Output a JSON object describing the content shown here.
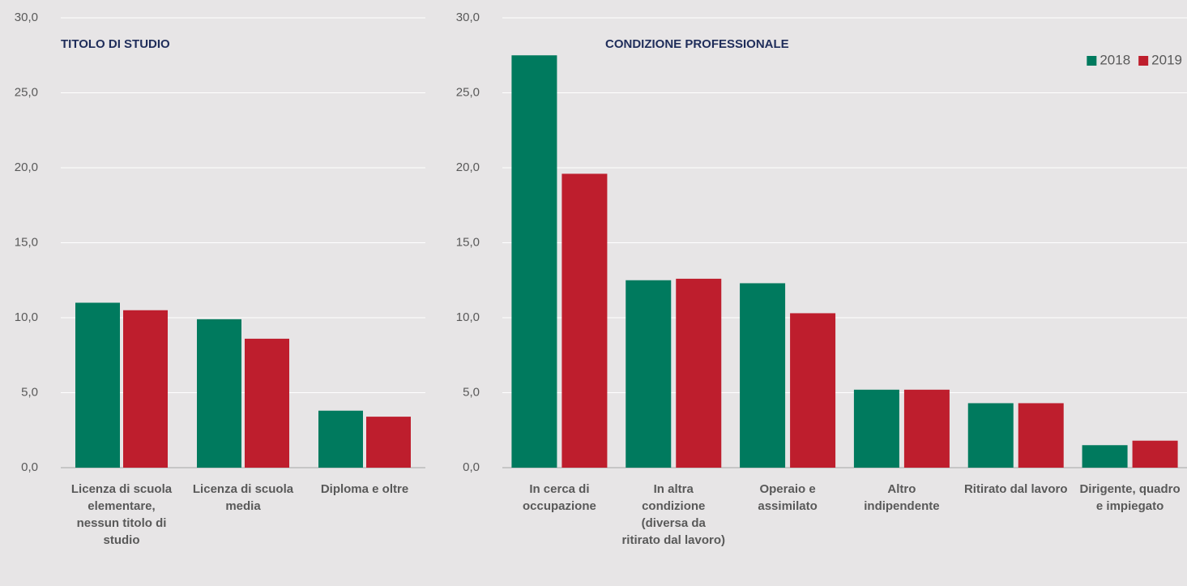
{
  "chart_data": [
    {
      "type": "bar",
      "title": "TITOLO DI STUDIO",
      "categories": [
        "Licenza di scuola elementare, nessun titolo di studio",
        "Licenza di scuola media",
        "Diploma e oltre"
      ],
      "series": [
        {
          "name": "2018",
          "color": "#007a5e",
          "values": [
            11.0,
            9.9,
            3.8
          ]
        },
        {
          "name": "2019",
          "color": "#be1e2d",
          "values": [
            10.5,
            8.6,
            3.4
          ]
        }
      ],
      "ylim": [
        0,
        30
      ],
      "yticks": [
        {
          "value": 0,
          "label": "0,0"
        },
        {
          "value": 5,
          "label": "5,0"
        },
        {
          "value": 10,
          "label": "10,0"
        },
        {
          "value": 15,
          "label": "15,0"
        },
        {
          "value": 20,
          "label": "20,0"
        },
        {
          "value": 25,
          "label": "25,0"
        },
        {
          "value": 30,
          "label": "30,0"
        }
      ],
      "grid": true,
      "legend": false
    },
    {
      "type": "bar",
      "title": "CONDIZIONE PROFESSIONALE",
      "categories": [
        "In cerca di occupazione",
        "In altra condizione (diversa da ritirato dal lavoro)",
        "Operaio e assimilato",
        "Altro indipendente",
        "Ritirato dal lavoro",
        "Dirigente, quadro e impiegato"
      ],
      "series": [
        {
          "name": "2018",
          "color": "#007a5e",
          "values": [
            27.5,
            12.5,
            12.3,
            5.2,
            4.3,
            1.5
          ]
        },
        {
          "name": "2019",
          "color": "#be1e2d",
          "values": [
            19.6,
            12.6,
            10.3,
            5.2,
            4.3,
            1.8
          ]
        }
      ],
      "ylim": [
        0,
        30
      ],
      "yticks": [
        {
          "value": 0,
          "label": "0,0"
        },
        {
          "value": 5,
          "label": "5,0"
        },
        {
          "value": 10,
          "label": "10,0"
        },
        {
          "value": 15,
          "label": "15,0"
        },
        {
          "value": 20,
          "label": "20,0"
        },
        {
          "value": 25,
          "label": "25,0"
        },
        {
          "value": 30,
          "label": "30,0"
        }
      ],
      "grid": true,
      "legend": "top-right"
    }
  ]
}
